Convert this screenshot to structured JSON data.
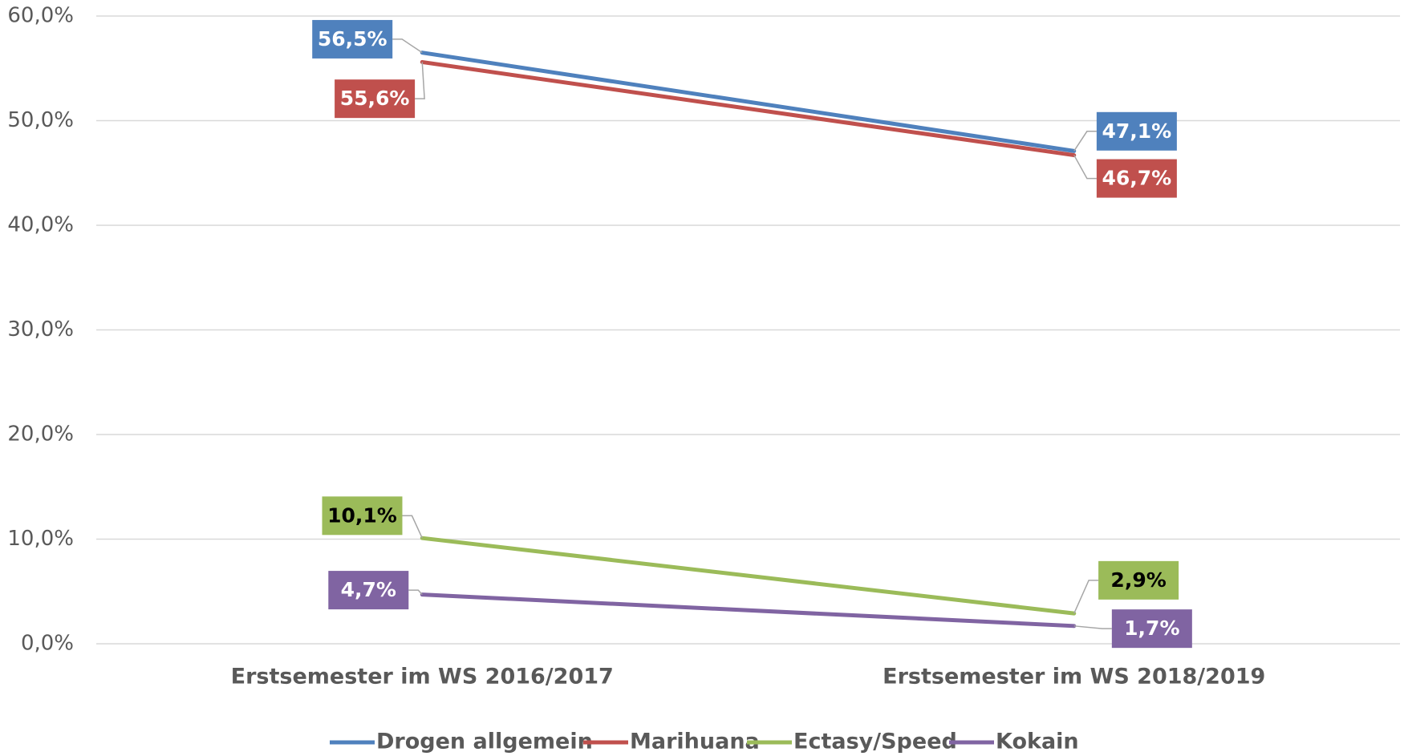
{
  "chart_data": {
    "type": "line",
    "categories": [
      "Erstsemester im WS 2016/2017",
      "Erstsemester im WS 2018/2019"
    ],
    "series": [
      {
        "name": "Drogen allgemein",
        "color": "#4f81bd",
        "label_color": "#ffffff",
        "values": [
          56.5,
          47.1
        ],
        "value_labels": [
          "56,5%",
          "47,1%"
        ]
      },
      {
        "name": "Marihuana",
        "color": "#c0504d",
        "label_color": "#ffffff",
        "values": [
          55.6,
          46.7
        ],
        "value_labels": [
          "55,6%",
          "46,7%"
        ]
      },
      {
        "name": "Ectasy/Speed",
        "color": "#9bbb59",
        "label_color": "#000000",
        "values": [
          10.1,
          2.9
        ],
        "value_labels": [
          "10,1%",
          "2,9%"
        ]
      },
      {
        "name": "Kokain",
        "color": "#8064a2",
        "label_color": "#ffffff",
        "values": [
          4.7,
          1.7
        ],
        "value_labels": [
          "4,7%",
          "1,7%"
        ]
      }
    ],
    "ylim": [
      0,
      60
    ],
    "yticks": [
      {
        "value": 0,
        "label": "0,0%"
      },
      {
        "value": 10,
        "label": "10,0%"
      },
      {
        "value": 20,
        "label": "20,0%"
      },
      {
        "value": 30,
        "label": "30,0%"
      },
      {
        "value": 40,
        "label": "40,0%"
      },
      {
        "value": 50,
        "label": "50,0%"
      },
      {
        "value": 60,
        "label": "60,0%"
      }
    ],
    "grid": true,
    "legend": "bottom"
  }
}
